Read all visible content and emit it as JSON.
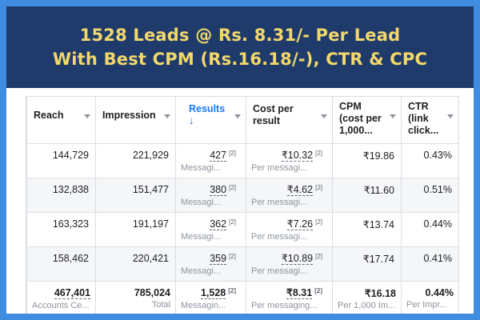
{
  "banner": {
    "line1": "1528 Leads @ Rs. 8.31/- Per Lead",
    "line2": "With Best CPM (Rs.16.18/-), CTR & CPC"
  },
  "columns": {
    "reach": "Reach",
    "impression": "Impression",
    "results": "Results",
    "results_arrow": "↓",
    "cost_line1": "Cost per",
    "cost_line2": "result",
    "cpm_line1": "CPM",
    "cpm_line2": "(cost per",
    "cpm_line3": "1,000...",
    "ctr_line1": "CTR",
    "ctr_line2": "(link",
    "ctr_line3": "click..."
  },
  "rows": [
    {
      "reach": "144,729",
      "impression": "221,929",
      "results": "427",
      "results_sup": "[2]",
      "results_sub": "Messagi...",
      "cost": "₹10.32",
      "cost_sup": "[2]",
      "cost_sub": "Per messagi...",
      "cpm": "₹19.86",
      "ctr": "0.43%"
    },
    {
      "reach": "132,838",
      "impression": "151,477",
      "results": "380",
      "results_sup": "[2]",
      "results_sub": "Messagi...",
      "cost": "₹4.62",
      "cost_sup": "[2]",
      "cost_sub": "Per messagi...",
      "cpm": "₹11.60",
      "ctr": "0.51%"
    },
    {
      "reach": "163,323",
      "impression": "191,197",
      "results": "362",
      "results_sup": "[2]",
      "results_sub": "Messagi...",
      "cost": "₹7.26",
      "cost_sup": "[2]",
      "cost_sub": "Per messagi...",
      "cpm": "₹13.74",
      "ctr": "0.44%"
    },
    {
      "reach": "158,462",
      "impression": "220,421",
      "results": "359",
      "results_sup": "[2]",
      "results_sub": "Messagi...",
      "cost": "₹10.89",
      "cost_sup": "[2]",
      "cost_sub": "Per messagi...",
      "cpm": "₹17.74",
      "ctr": "0.41%"
    }
  ],
  "total": {
    "reach": "467,401",
    "reach_sub": "Accounts Ce...",
    "impression": "785,024",
    "impression_sub": "Total",
    "results": "1,528",
    "results_sup": "[2]",
    "results_sub": "Messagin...",
    "cost": "₹8.31",
    "cost_sup": "[2]",
    "cost_sub": "Per messaging...",
    "cpm": "₹16.18",
    "cpm_sub": "Per 1,000 Im...",
    "ctr": "0.44%",
    "ctr_sub": "Per Impr..."
  },
  "colors": {
    "background": "#3f8de0",
    "banner": "#1f3b6b",
    "banner_text": "#f3d86c",
    "accent": "#1877f2"
  }
}
